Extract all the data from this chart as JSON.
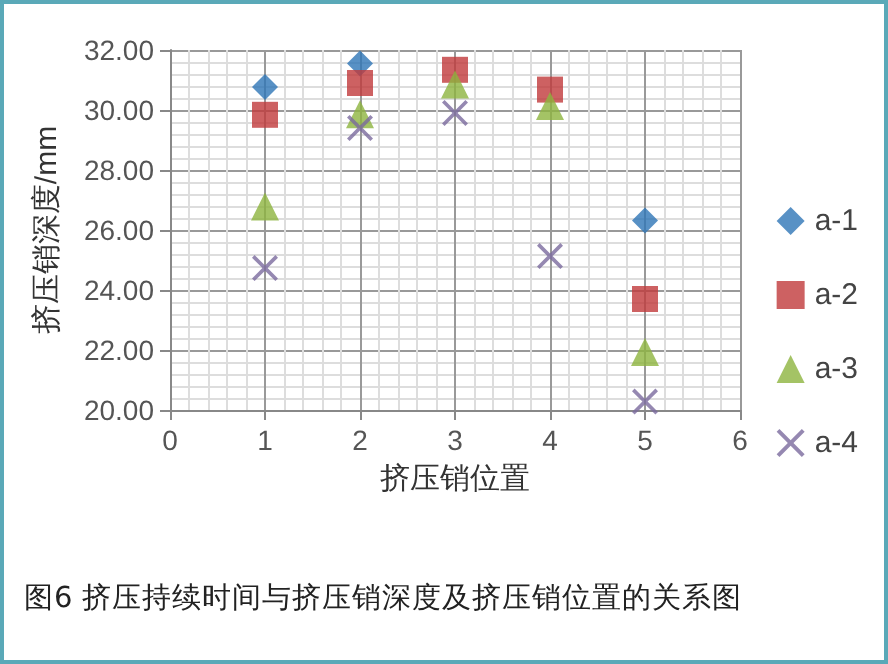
{
  "chart_data": {
    "type": "scatter",
    "xlabel": "挤压销位置",
    "ylabel": "挤压销深度/mm",
    "annotations": [
      "图6 挤压持续时间与挤压销深度及挤压销位置的关系图"
    ],
    "x": [
      1,
      2,
      3,
      4,
      5
    ],
    "xlim": [
      0,
      6
    ],
    "xticks": [
      0,
      1,
      2,
      3,
      4,
      5,
      6
    ],
    "ylim": [
      20,
      32
    ],
    "yticks": [
      {
        "value": 20,
        "label": "20.00"
      },
      {
        "value": 22,
        "label": "22.00"
      },
      {
        "value": 24,
        "label": "24.00"
      },
      {
        "value": 26,
        "label": "26.00"
      },
      {
        "value": 28,
        "label": "28.00"
      },
      {
        "value": 30,
        "label": "30.00"
      },
      {
        "value": 32,
        "label": "32.00"
      }
    ],
    "grid": true,
    "legend": "right",
    "series": [
      {
        "name": "a-1",
        "color": "#2e75b6",
        "marker": "diamond",
        "values": [
          30.77,
          31.55,
          null,
          null,
          26.32
        ]
      },
      {
        "name": "a-2",
        "color": "#c0393b",
        "marker": "square",
        "values": [
          29.84,
          30.9,
          31.34,
          30.68,
          23.7
        ]
      },
      {
        "name": "a-3",
        "color": "#8db43e",
        "marker": "triangle",
        "values": [
          26.78,
          29.86,
          30.85,
          30.13,
          21.93
        ]
      },
      {
        "name": "a-4",
        "color": "#7b6a9e",
        "marker": "cross",
        "values": [
          24.73,
          29.4,
          29.9,
          25.13,
          20.28
        ]
      }
    ]
  }
}
